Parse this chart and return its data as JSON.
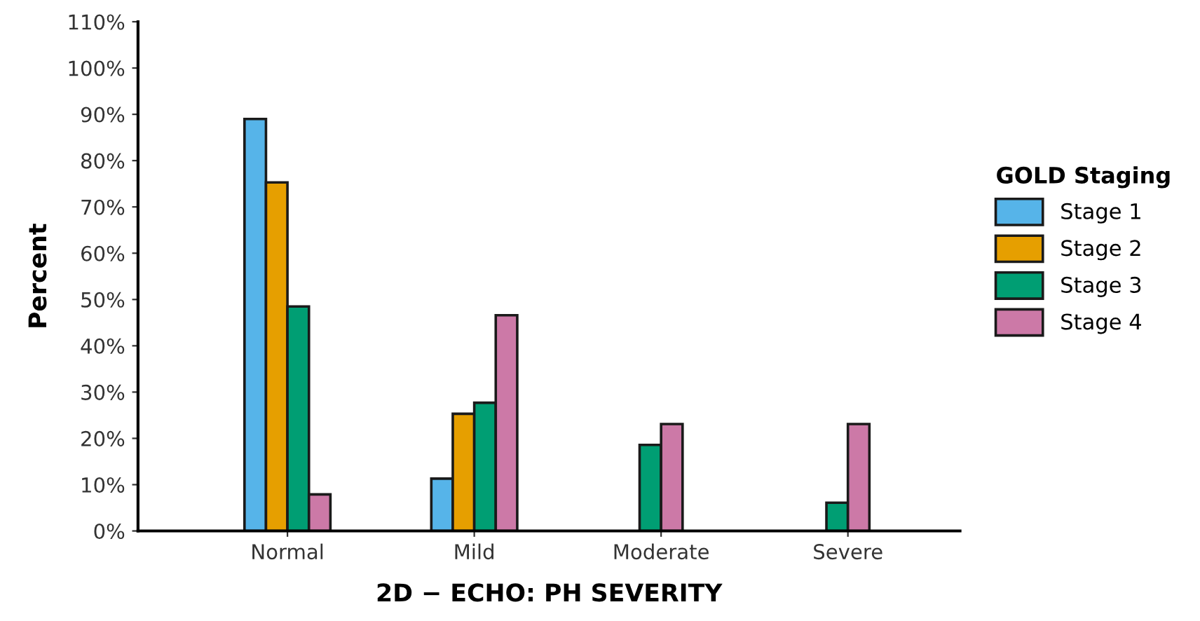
{
  "chart_data": {
    "type": "bar",
    "xlabel": "2D − ECHO: PH SEVERITY",
    "ylabel": "Percent",
    "legend_title": "GOLD Staging",
    "categories": [
      "Normal",
      "Mild",
      "Moderate",
      "Severe"
    ],
    "series": [
      {
        "name": "Stage 1",
        "color": "#56b4e9",
        "values": [
          89,
          11.3,
          null,
          null
        ]
      },
      {
        "name": "Stage 2",
        "color": "#e69f00",
        "values": [
          75.3,
          25.3,
          null,
          null
        ]
      },
      {
        "name": "Stage 3",
        "color": "#009e73",
        "values": [
          48.5,
          27.7,
          18.6,
          6.1
        ]
      },
      {
        "name": "Stage 4",
        "color": "#cc79a7",
        "values": [
          7.9,
          46.6,
          23.1,
          23.1
        ]
      }
    ],
    "ylim": [
      0,
      110
    ],
    "yticks": [
      {
        "value": 0,
        "label": "0%"
      },
      {
        "value": 10,
        "label": "10%"
      },
      {
        "value": 20,
        "label": "20%"
      },
      {
        "value": 30,
        "label": "30%"
      },
      {
        "value": 40,
        "label": "40%"
      },
      {
        "value": 50,
        "label": "50%"
      },
      {
        "value": 60,
        "label": "60%"
      },
      {
        "value": 70,
        "label": "70%"
      },
      {
        "value": 80,
        "label": "80%"
      },
      {
        "value": 90,
        "label": "90%"
      },
      {
        "value": 100,
        "label": "100%"
      },
      {
        "value": 110,
        "label": "110%"
      }
    ],
    "grid": false,
    "legend": "right"
  }
}
